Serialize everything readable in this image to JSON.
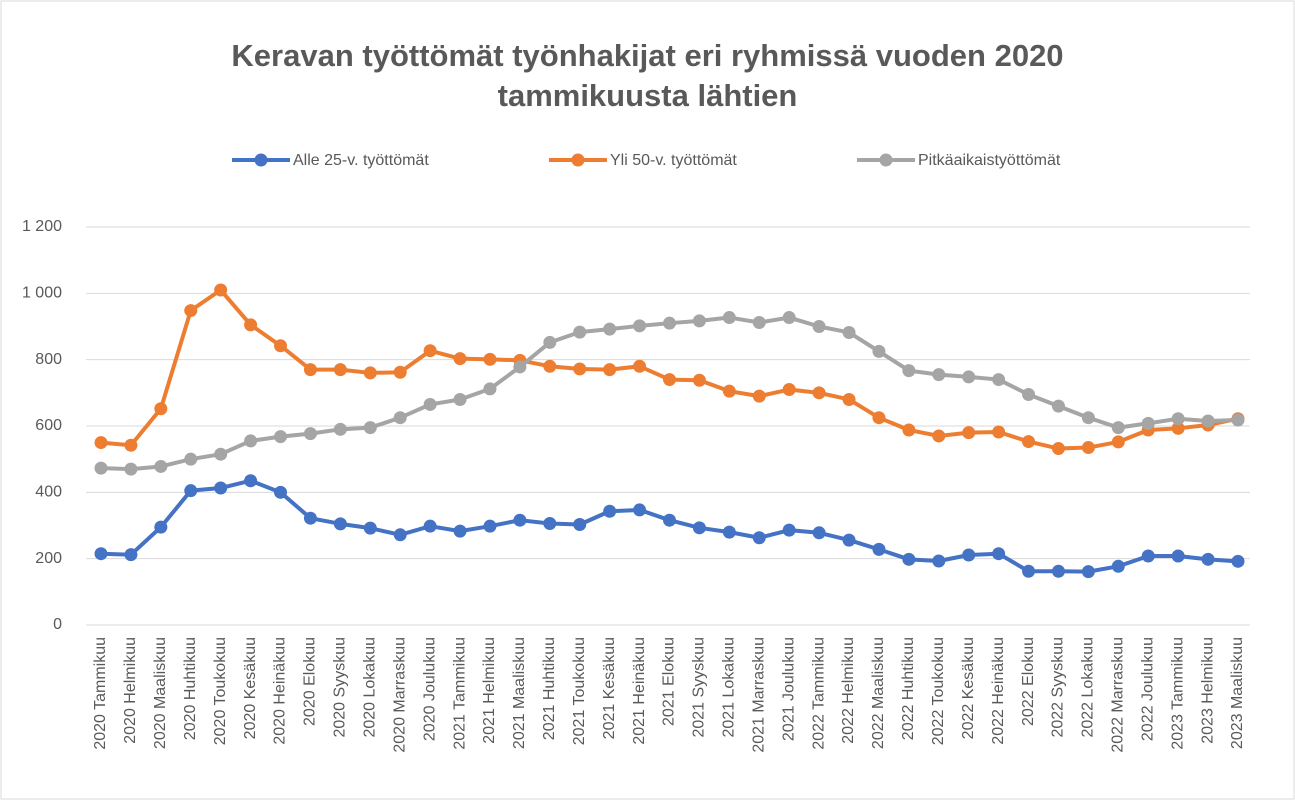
{
  "chart_data": {
    "type": "line",
    "title": "Keravan työttömät työnhakijat eri ryhmissä vuoden 2020 tammikuusta lähtien",
    "categories": [
      "2020 Tammikuu",
      "2020 Helmikuu",
      "2020 Maaliskuu",
      "2020 Huhtikuu",
      "2020 Toukokuu",
      "2020 Kesäkuu",
      "2020 Heinäkuu",
      "2020 Elokuu",
      "2020 Syyskuu",
      "2020 Lokakuu",
      "2020 Marraskuu",
      "2020 Joulukuu",
      "2021 Tammikuu",
      "2021 Helmikuu",
      "2021 Maaliskuu",
      "2021 Huhtikuu",
      "2021 Toukokuu",
      "2021 Kesäkuu",
      "2021 Heinäkuu",
      "2021 Elokuu",
      "2021 Syyskuu",
      "2021 Lokakuu",
      "2021 Marraskuu",
      "2021 Joulukuu",
      "2022 Tammikuu",
      "2022 Helmikuu",
      "2022 Maaliskuu",
      "2022 Huhtikuu",
      "2022 Toukokuu",
      "2022 Kesäkuu",
      "2022 Heinäkuu",
      "2022 Elokuu",
      "2022 Syyskuu",
      "2022 Lokakuu",
      "2022 Marraskuu",
      "2022 Joulukuu",
      "2023 Tammikuu",
      "2023 Helmikuu",
      "2023 Maaliskuu"
    ],
    "series": [
      {
        "name": "Alle 25-v. työttömät",
        "color": "#4472c4",
        "values": [
          215,
          212,
          295,
          405,
          413,
          435,
          400,
          322,
          305,
          292,
          272,
          298,
          283,
          298,
          316,
          306,
          303,
          343,
          347,
          316,
          293,
          280,
          263,
          286,
          278,
          256,
          228,
          198,
          193,
          211,
          215,
          162,
          162,
          161,
          177,
          208,
          208,
          198,
          192
        ]
      },
      {
        "name": "Yli 50-v. työttömät",
        "color": "#ed7d31",
        "values": [
          550,
          542,
          652,
          948,
          1010,
          905,
          842,
          770,
          770,
          760,
          762,
          827,
          803,
          801,
          798,
          780,
          772,
          770,
          780,
          740,
          738,
          705,
          690,
          710,
          700,
          680,
          625,
          588,
          570,
          580,
          582,
          553,
          532,
          535,
          552,
          588,
          593,
          603,
          622
        ]
      },
      {
        "name": "Pitkäaikaistyöttömät",
        "color": "#a5a5a5",
        "values": [
          473,
          470,
          478,
          500,
          515,
          555,
          568,
          577,
          590,
          595,
          625,
          665,
          680,
          712,
          778,
          852,
          883,
          892,
          902,
          910,
          917,
          927,
          912,
          927,
          900,
          882,
          825,
          767,
          755,
          748,
          740,
          695,
          660,
          625,
          595,
          608,
          622,
          615,
          618
        ]
      }
    ],
    "ylim": [
      0,
      1200
    ],
    "yticks": [
      0,
      200,
      400,
      600,
      800,
      {
        "value": 1000,
        "label": "1 000"
      },
      {
        "value": 1200,
        "label": "1 200"
      }
    ],
    "grid": true,
    "legend": "top"
  }
}
